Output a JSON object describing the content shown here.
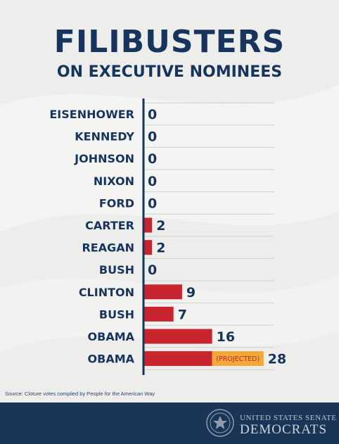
{
  "header": {
    "title": "FILIBUSTERS",
    "subtitle": "ON EXECUTIVE NOMINEES"
  },
  "source": "Source: Cloture votes compiled by People for the American Way",
  "footer": {
    "org_line1": "UNITED STATES SENATE",
    "org_line2": "DEMOCRATS"
  },
  "colors": {
    "background": "#ededeb",
    "navy": "#17355c",
    "bar": "#c8252e",
    "projected": "#f2a93b",
    "footer": "#1b3556"
  },
  "chart_data": {
    "type": "bar",
    "orientation": "horizontal",
    "categories": [
      "EISENHOWER",
      "KENNEDY",
      "JOHNSON",
      "NIXON",
      "FORD",
      "CARTER",
      "REAGAN",
      "BUSH",
      "CLINTON",
      "BUSH",
      "OBAMA",
      "OBAMA"
    ],
    "values": [
      0,
      0,
      0,
      0,
      0,
      2,
      2,
      0,
      9,
      7,
      16,
      28
    ],
    "data_labels": [
      "0",
      "0",
      "0",
      "0",
      "0",
      "2",
      "2",
      "0",
      "9",
      "7",
      "16",
      "28"
    ],
    "projected": {
      "category_index": 11,
      "from": 16,
      "to": 28,
      "label": "(PROJECTED)"
    },
    "title": "FILIBUSTERS",
    "subtitle": "ON EXECUTIVE NOMINEES",
    "xlabel": "",
    "ylabel": "",
    "grid": true
  }
}
